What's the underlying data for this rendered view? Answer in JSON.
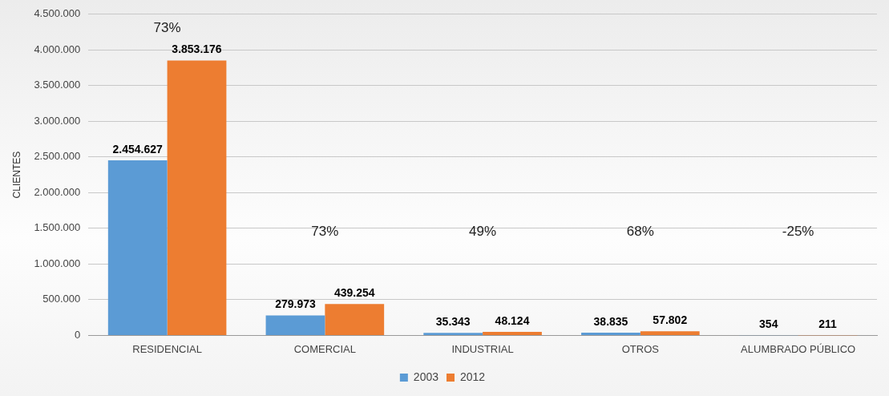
{
  "chart_data": {
    "type": "bar",
    "ylabel": "CLIENTES",
    "categories": [
      "RESIDENCIAL",
      "COMERCIAL",
      "INDUSTRIAL",
      "OTROS",
      "ALUMBRADO PÚBLICO"
    ],
    "series": [
      {
        "name": "2003",
        "color": "#5b9bd5",
        "values": [
          2454627,
          279973,
          35343,
          38835,
          354
        ],
        "value_labels": [
          "2.454.627",
          "279.973",
          "35.343",
          "38.835",
          "354"
        ]
      },
      {
        "name": "2012",
        "color": "#ed7d31",
        "values": [
          3853176,
          439254,
          48124,
          57802,
          211
        ],
        "value_labels": [
          "3.853.176",
          "439.254",
          "48.124",
          "57.802",
          "211"
        ]
      }
    ],
    "ylim": [
      0,
      4500000
    ],
    "yticks": [
      {
        "value": 0,
        "label": "0"
      },
      {
        "value": 500000,
        "label": "500.000"
      },
      {
        "value": 1000000,
        "label": "1.000.000"
      },
      {
        "value": 1500000,
        "label": "1.500.000"
      },
      {
        "value": 2000000,
        "label": "2.000.000"
      },
      {
        "value": 2500000,
        "label": "2.500.000"
      },
      {
        "value": 3000000,
        "label": "3.000.000"
      },
      {
        "value": 3500000,
        "label": "3.500.000"
      },
      {
        "value": 4000000,
        "label": "4.000.000"
      },
      {
        "value": 4500000,
        "label": "4.500.000"
      }
    ],
    "annotations": [
      "73%",
      "73%",
      "49%",
      "68%",
      "-25%"
    ],
    "grid": "y",
    "legend": "bottom"
  }
}
